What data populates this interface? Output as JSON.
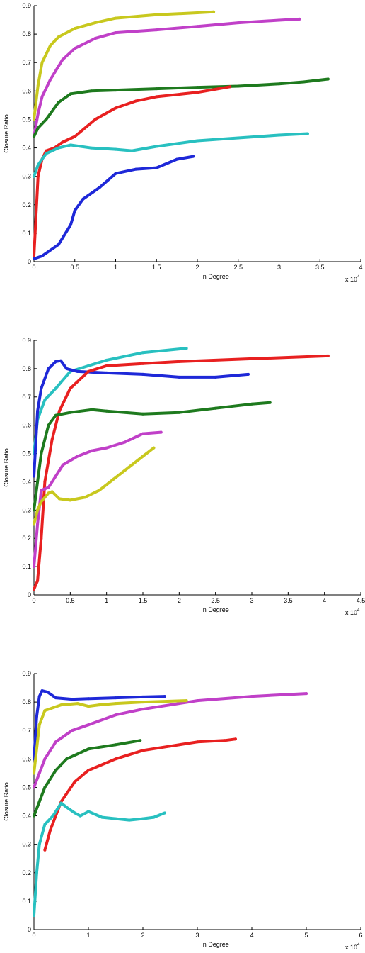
{
  "chart_data": [
    {
      "type": "line",
      "xlabel": "In Degree",
      "ylabel": "Closure Ratio",
      "x_exponent_label": "x 10",
      "x_exponent_power": "4",
      "xlim": [
        0,
        4
      ],
      "ylim": [
        0,
        0.9
      ],
      "xticks": [
        "0",
        "0.5",
        "1",
        "1.5",
        "2",
        "2.5",
        "3",
        "3.5",
        "4"
      ],
      "yticks": [
        "0",
        "0.1",
        "0.2",
        "0.3",
        "0.4",
        "0.5",
        "0.6",
        "0.7",
        "0.8",
        "0.9"
      ],
      "grid": false,
      "series": [
        {
          "color": "#c8c81e",
          "points": [
            [
              0,
              0.5
            ],
            [
              0.05,
              0.62
            ],
            [
              0.1,
              0.7
            ],
            [
              0.2,
              0.76
            ],
            [
              0.3,
              0.79
            ],
            [
              0.5,
              0.82
            ],
            [
              0.75,
              0.84
            ],
            [
              1.0,
              0.856
            ],
            [
              1.5,
              0.868
            ],
            [
              2.0,
              0.875
            ],
            [
              2.2,
              0.878
            ]
          ]
        },
        {
          "color": "#c040c8",
          "points": [
            [
              0,
              0.44
            ],
            [
              0.05,
              0.52
            ],
            [
              0.1,
              0.58
            ],
            [
              0.2,
              0.64
            ],
            [
              0.35,
              0.71
            ],
            [
              0.5,
              0.75
            ],
            [
              0.75,
              0.785
            ],
            [
              1.0,
              0.805
            ],
            [
              1.5,
              0.815
            ],
            [
              2.0,
              0.827
            ],
            [
              2.5,
              0.84
            ],
            [
              3.0,
              0.849
            ],
            [
              3.25,
              0.853
            ]
          ]
        },
        {
          "color": "#1e7a1e",
          "points": [
            [
              0,
              0.44
            ],
            [
              0.05,
              0.47
            ],
            [
              0.15,
              0.5
            ],
            [
              0.3,
              0.56
            ],
            [
              0.45,
              0.59
            ],
            [
              0.7,
              0.6
            ],
            [
              1.0,
              0.603
            ],
            [
              1.5,
              0.608
            ],
            [
              2.0,
              0.613
            ],
            [
              2.5,
              0.617
            ],
            [
              3.0,
              0.625
            ],
            [
              3.3,
              0.632
            ],
            [
              3.6,
              0.642
            ]
          ]
        },
        {
          "color": "#e82020",
          "points": [
            [
              0,
              0.02
            ],
            [
              0.05,
              0.3
            ],
            [
              0.1,
              0.36
            ],
            [
              0.15,
              0.39
            ],
            [
              0.25,
              0.4
            ],
            [
              0.35,
              0.42
            ],
            [
              0.5,
              0.44
            ],
            [
              0.75,
              0.5
            ],
            [
              1.0,
              0.54
            ],
            [
              1.25,
              0.565
            ],
            [
              1.5,
              0.58
            ],
            [
              2.0,
              0.595
            ],
            [
              2.4,
              0.615
            ]
          ]
        },
        {
          "color": "#28c0c0",
          "points": [
            [
              0,
              0.3
            ],
            [
              0.05,
              0.34
            ],
            [
              0.15,
              0.38
            ],
            [
              0.3,
              0.4
            ],
            [
              0.45,
              0.41
            ],
            [
              0.7,
              0.4
            ],
            [
              1.0,
              0.395
            ],
            [
              1.2,
              0.39
            ],
            [
              1.5,
              0.405
            ],
            [
              2.0,
              0.425
            ],
            [
              2.5,
              0.435
            ],
            [
              3.0,
              0.445
            ],
            [
              3.35,
              0.45
            ]
          ]
        },
        {
          "color": "#1e28d8",
          "points": [
            [
              0,
              0.01
            ],
            [
              0.1,
              0.02
            ],
            [
              0.3,
              0.06
            ],
            [
              0.45,
              0.13
            ],
            [
              0.5,
              0.18
            ],
            [
              0.6,
              0.22
            ],
            [
              0.8,
              0.26
            ],
            [
              1.0,
              0.31
            ],
            [
              1.25,
              0.325
            ],
            [
              1.5,
              0.33
            ],
            [
              1.75,
              0.36
            ],
            [
              1.95,
              0.37
            ]
          ]
        }
      ]
    },
    {
      "type": "line",
      "xlabel": "In Degree",
      "ylabel": "Closure Ratio",
      "x_exponent_label": "x 10",
      "x_exponent_power": "4",
      "xlim": [
        0,
        4.5
      ],
      "ylim": [
        0,
        0.9
      ],
      "xticks": [
        "0",
        "0.5",
        "1",
        "1.5",
        "2",
        "2.5",
        "3",
        "3.5",
        "4",
        "4.5"
      ],
      "yticks": [
        "0",
        "0.1",
        "0.2",
        "0.3",
        "0.4",
        "0.5",
        "0.6",
        "0.7",
        "0.8",
        "0.9"
      ],
      "grid": false,
      "series": [
        {
          "color": "#28c0c0",
          "points": [
            [
              0,
              0.5
            ],
            [
              0.05,
              0.62
            ],
            [
              0.15,
              0.69
            ],
            [
              0.3,
              0.73
            ],
            [
              0.5,
              0.79
            ],
            [
              0.75,
              0.81
            ],
            [
              1.0,
              0.83
            ],
            [
              1.5,
              0.857
            ],
            [
              2.1,
              0.872
            ]
          ]
        },
        {
          "color": "#1e28d8",
          "points": [
            [
              0,
              0.42
            ],
            [
              0.05,
              0.65
            ],
            [
              0.1,
              0.73
            ],
            [
              0.2,
              0.8
            ],
            [
              0.3,
              0.825
            ],
            [
              0.37,
              0.828
            ],
            [
              0.45,
              0.8
            ],
            [
              0.6,
              0.79
            ],
            [
              1.0,
              0.785
            ],
            [
              1.5,
              0.78
            ],
            [
              2.0,
              0.77
            ],
            [
              2.5,
              0.77
            ],
            [
              2.95,
              0.78
            ]
          ]
        },
        {
          "color": "#e82020",
          "points": [
            [
              0,
              0.02
            ],
            [
              0.05,
              0.05
            ],
            [
              0.1,
              0.2
            ],
            [
              0.15,
              0.4
            ],
            [
              0.25,
              0.55
            ],
            [
              0.35,
              0.65
            ],
            [
              0.5,
              0.73
            ],
            [
              0.75,
              0.79
            ],
            [
              1.0,
              0.81
            ],
            [
              1.5,
              0.818
            ],
            [
              2.0,
              0.825
            ],
            [
              3.0,
              0.835
            ],
            [
              4.05,
              0.845
            ]
          ]
        },
        {
          "color": "#1e7a1e",
          "points": [
            [
              0,
              0.3
            ],
            [
              0.05,
              0.4
            ],
            [
              0.1,
              0.5
            ],
            [
              0.2,
              0.6
            ],
            [
              0.3,
              0.635
            ],
            [
              0.5,
              0.645
            ],
            [
              0.8,
              0.655
            ],
            [
              1.0,
              0.65
            ],
            [
              1.5,
              0.64
            ],
            [
              2.0,
              0.645
            ],
            [
              2.5,
              0.66
            ],
            [
              3.0,
              0.675
            ],
            [
              3.25,
              0.68
            ]
          ]
        },
        {
          "color": "#c040c8",
          "points": [
            [
              0,
              0.1
            ],
            [
              0.05,
              0.25
            ],
            [
              0.1,
              0.37
            ],
            [
              0.2,
              0.38
            ],
            [
              0.3,
              0.42
            ],
            [
              0.4,
              0.46
            ],
            [
              0.6,
              0.49
            ],
            [
              0.8,
              0.51
            ],
            [
              1.0,
              0.52
            ],
            [
              1.25,
              0.54
            ],
            [
              1.5,
              0.57
            ],
            [
              1.75,
              0.575
            ]
          ]
        },
        {
          "color": "#c8c81e",
          "points": [
            [
              0,
              0.25
            ],
            [
              0.05,
              0.3
            ],
            [
              0.1,
              0.33
            ],
            [
              0.2,
              0.36
            ],
            [
              0.25,
              0.365
            ],
            [
              0.35,
              0.34
            ],
            [
              0.5,
              0.335
            ],
            [
              0.7,
              0.345
            ],
            [
              0.9,
              0.37
            ],
            [
              1.1,
              0.41
            ],
            [
              1.3,
              0.45
            ],
            [
              1.5,
              0.49
            ],
            [
              1.65,
              0.52
            ]
          ]
        }
      ]
    },
    {
      "type": "line",
      "xlabel": "In Degree",
      "ylabel": "Closure Ratio",
      "x_exponent_label": "x 10",
      "x_exponent_power": "4",
      "xlim": [
        0,
        6
      ],
      "ylim": [
        0,
        0.9
      ],
      "xticks": [
        "0",
        "1",
        "2",
        "3",
        "4",
        "5",
        "6"
      ],
      "yticks": [
        "0",
        "0.1",
        "0.2",
        "0.3",
        "0.4",
        "0.5",
        "0.6",
        "0.7",
        "0.8",
        "0.9"
      ],
      "grid": false,
      "series": [
        {
          "color": "#1e28d8",
          "points": [
            [
              0,
              0.6
            ],
            [
              0.05,
              0.75
            ],
            [
              0.1,
              0.82
            ],
            [
              0.15,
              0.84
            ],
            [
              0.25,
              0.835
            ],
            [
              0.4,
              0.815
            ],
            [
              0.7,
              0.81
            ],
            [
              1.0,
              0.812
            ],
            [
              1.5,
              0.815
            ],
            [
              2.0,
              0.818
            ],
            [
              2.4,
              0.82
            ]
          ]
        },
        {
          "color": "#c040c8",
          "points": [
            [
              0,
              0.5
            ],
            [
              0.1,
              0.55
            ],
            [
              0.2,
              0.6
            ],
            [
              0.4,
              0.66
            ],
            [
              0.7,
              0.7
            ],
            [
              1.0,
              0.72
            ],
            [
              1.5,
              0.755
            ],
            [
              2.0,
              0.775
            ],
            [
              3.0,
              0.805
            ],
            [
              4.0,
              0.82
            ],
            [
              5.0,
              0.83
            ]
          ]
        },
        {
          "color": "#c8c81e",
          "points": [
            [
              0,
              0.55
            ],
            [
              0.1,
              0.72
            ],
            [
              0.2,
              0.77
            ],
            [
              0.5,
              0.79
            ],
            [
              0.8,
              0.795
            ],
            [
              1.0,
              0.785
            ],
            [
              1.2,
              0.79
            ],
            [
              1.5,
              0.795
            ],
            [
              2.0,
              0.8
            ],
            [
              2.8,
              0.805
            ]
          ]
        },
        {
          "color": "#1e7a1e",
          "points": [
            [
              0,
              0.4
            ],
            [
              0.1,
              0.45
            ],
            [
              0.2,
              0.5
            ],
            [
              0.4,
              0.56
            ],
            [
              0.6,
              0.6
            ],
            [
              1.0,
              0.635
            ],
            [
              1.5,
              0.65
            ],
            [
              1.95,
              0.665
            ]
          ]
        },
        {
          "color": "#e82020",
          "points": [
            [
              0.2,
              0.28
            ],
            [
              0.3,
              0.35
            ],
            [
              0.5,
              0.45
            ],
            [
              0.75,
              0.52
            ],
            [
              1.0,
              0.56
            ],
            [
              1.5,
              0.6
            ],
            [
              2.0,
              0.63
            ],
            [
              2.5,
              0.645
            ],
            [
              3.0,
              0.66
            ],
            [
              3.5,
              0.665
            ],
            [
              3.7,
              0.67
            ]
          ]
        },
        {
          "color": "#28c0c0",
          "points": [
            [
              0,
              0.05
            ],
            [
              0.05,
              0.2
            ],
            [
              0.1,
              0.3
            ],
            [
              0.2,
              0.37
            ],
            [
              0.35,
              0.4
            ],
            [
              0.5,
              0.445
            ],
            [
              0.6,
              0.43
            ],
            [
              0.75,
              0.41
            ],
            [
              0.85,
              0.4
            ],
            [
              1.0,
              0.415
            ],
            [
              1.25,
              0.395
            ],
            [
              1.5,
              0.39
            ],
            [
              1.75,
              0.385
            ],
            [
              2.0,
              0.39
            ],
            [
              2.2,
              0.395
            ],
            [
              2.4,
              0.41
            ]
          ]
        }
      ]
    }
  ]
}
